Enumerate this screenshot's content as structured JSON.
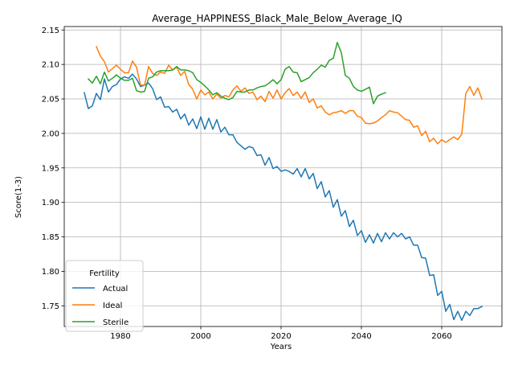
{
  "chart_data": {
    "type": "line",
    "title": "Average_HAPPINESS_Black_Male_Below_Average_IQ",
    "xlabel": "Years",
    "ylabel": "Score(1-3)",
    "xlim": [
      1966,
      2075
    ],
    "ylim": [
      1.72,
      2.155
    ],
    "x_ticks": [
      1980,
      2000,
      2020,
      2040,
      2060
    ],
    "x_tick_labels": [
      "1980",
      "2000",
      "2020",
      "2040",
      "2060"
    ],
    "y_ticks": [
      1.75,
      1.8,
      1.85,
      1.9,
      1.95,
      2.0,
      2.05,
      2.1,
      2.15
    ],
    "y_tick_labels": [
      "1.75",
      "1.80",
      "1.85",
      "1.90",
      "1.95",
      "2.00",
      "2.05",
      "2.10",
      "2.15"
    ],
    "grid": true,
    "legend": {
      "title": "Fertility",
      "placement": "bottom-left"
    },
    "series": [
      {
        "name": "Actual",
        "color": "#1f77b4",
        "x": [
          1971,
          1972,
          1973,
          1974,
          1975,
          1976,
          1977,
          1978,
          1979,
          1980,
          1981,
          1982,
          1983,
          1984,
          1985,
          1986,
          1987,
          1988,
          1989,
          1990,
          1991,
          1992,
          1993,
          1994,
          1995,
          1996,
          1997,
          1998,
          1999,
          2000,
          2001,
          2002,
          2003,
          2004,
          2005,
          2006,
          2007,
          2008,
          2009,
          2010,
          2011,
          2012,
          2013,
          2014,
          2015,
          2016,
          2017,
          2018,
          2019,
          2020,
          2021,
          2022,
          2023,
          2024,
          2025,
          2026,
          2027,
          2028,
          2029,
          2030,
          2031,
          2032,
          2033,
          2034,
          2035,
          2036,
          2037,
          2038,
          2039,
          2040,
          2041,
          2042,
          2043,
          2044,
          2045,
          2046,
          2047,
          2048,
          2049,
          2050,
          2051,
          2052,
          2053,
          2054,
          2055,
          2056,
          2057,
          2058,
          2059,
          2060,
          2061,
          2062,
          2063,
          2064,
          2065,
          2066,
          2067,
          2068,
          2069,
          2070
        ],
        "y": [
          2.059,
          2.036,
          2.04,
          2.058,
          2.049,
          2.079,
          2.06,
          2.068,
          2.071,
          2.079,
          2.082,
          2.08,
          2.086,
          2.079,
          2.068,
          2.07,
          2.073,
          2.065,
          2.049,
          2.053,
          2.038,
          2.039,
          2.031,
          2.035,
          2.021,
          2.028,
          2.012,
          2.021,
          2.007,
          2.024,
          2.006,
          2.022,
          2.006,
          2.02,
          2.002,
          2.009,
          1.998,
          1.998,
          1.987,
          1.982,
          1.977,
          1.981,
          1.979,
          1.968,
          1.969,
          1.954,
          1.965,
          1.949,
          1.952,
          1.945,
          1.947,
          1.945,
          1.941,
          1.949,
          1.937,
          1.949,
          1.934,
          1.942,
          1.92,
          1.93,
          1.908,
          1.917,
          1.893,
          1.904,
          1.88,
          1.888,
          1.865,
          1.874,
          1.852,
          1.859,
          1.842,
          1.853,
          1.841,
          1.855,
          1.843,
          1.856,
          1.847,
          1.856,
          1.85,
          1.855,
          1.847,
          1.85,
          1.838,
          1.838,
          1.82,
          1.819,
          1.794,
          1.795,
          1.765,
          1.771,
          1.742,
          1.752,
          1.73,
          1.742,
          1.729,
          1.742,
          1.736,
          1.746,
          1.746,
          1.749
        ]
      },
      {
        "name": "Ideal",
        "color": "#ff7f0e",
        "x": [
          1974,
          1975,
          1976,
          1977,
          1978,
          1979,
          1980,
          1981,
          1982,
          1983,
          1984,
          1985,
          1986,
          1987,
          1988,
          1989,
          1990,
          1991,
          1992,
          1993,
          1994,
          1995,
          1996,
          1997,
          1998,
          1999,
          2000,
          2001,
          2002,
          2003,
          2004,
          2005,
          2006,
          2007,
          2008,
          2009,
          2010,
          2011,
          2012,
          2013,
          2014,
          2015,
          2016,
          2017,
          2018,
          2019,
          2020,
          2021,
          2022,
          2023,
          2024,
          2025,
          2026,
          2027,
          2028,
          2029,
          2030,
          2031,
          2032,
          2033,
          2034,
          2035,
          2036,
          2037,
          2038,
          2039,
          2040,
          2041,
          2042,
          2043,
          2044,
          2045,
          2046,
          2047,
          2048,
          2049,
          2050,
          2051,
          2052,
          2053,
          2054,
          2055,
          2056,
          2057,
          2058,
          2059,
          2060,
          2061,
          2062,
          2063,
          2064,
          2065,
          2066,
          2067,
          2068,
          2069,
          2070
        ],
        "y": [
          2.126,
          2.112,
          2.104,
          2.089,
          2.094,
          2.099,
          2.093,
          2.088,
          2.088,
          2.105,
          2.096,
          2.07,
          2.07,
          2.097,
          2.087,
          2.084,
          2.089,
          2.087,
          2.099,
          2.092,
          2.096,
          2.084,
          2.09,
          2.071,
          2.064,
          2.05,
          2.063,
          2.056,
          2.06,
          2.05,
          2.057,
          2.051,
          2.055,
          2.053,
          2.063,
          2.069,
          2.061,
          2.066,
          2.058,
          2.06,
          2.049,
          2.054,
          2.046,
          2.061,
          2.051,
          2.063,
          2.05,
          2.059,
          2.065,
          2.055,
          2.06,
          2.051,
          2.06,
          2.045,
          2.05,
          2.037,
          2.04,
          2.031,
          2.027,
          2.03,
          2.031,
          2.033,
          2.029,
          2.033,
          2.033,
          2.025,
          2.023,
          2.015,
          2.014,
          2.015,
          2.018,
          2.023,
          2.027,
          2.033,
          2.031,
          2.03,
          2.025,
          2.02,
          2.019,
          2.009,
          2.011,
          1.997,
          2.003,
          1.988,
          1.993,
          1.985,
          1.991,
          1.987,
          1.991,
          1.995,
          1.991,
          1.999,
          2.058,
          2.068,
          2.055,
          2.066,
          2.05
        ]
      },
      {
        "name": "Sterile",
        "color": "#2ca02c",
        "x": [
          1972,
          1973,
          1974,
          1975,
          1976,
          1977,
          1978,
          1979,
          1980,
          1981,
          1982,
          1983,
          1984,
          1985,
          1986,
          1987,
          1988,
          1989,
          1990,
          1991,
          1992,
          1993,
          1994,
          1995,
          1996,
          1997,
          1998,
          1999,
          2000,
          2001,
          2002,
          2003,
          2004,
          2005,
          2006,
          2007,
          2008,
          2009,
          2010,
          2011,
          2012,
          2013,
          2014,
          2015,
          2016,
          2017,
          2018,
          2019,
          2020,
          2021,
          2022,
          2023,
          2024,
          2025,
          2026,
          2027,
          2028,
          2029,
          2030,
          2031,
          2032,
          2033,
          2034,
          2035,
          2036,
          2037,
          2038,
          2039,
          2040,
          2041,
          2042,
          2043,
          2044,
          2045,
          2046
        ],
        "y": [
          2.079,
          2.073,
          2.083,
          2.072,
          2.089,
          2.076,
          2.08,
          2.085,
          2.08,
          2.077,
          2.077,
          2.08,
          2.062,
          2.06,
          2.061,
          2.08,
          2.082,
          2.089,
          2.091,
          2.091,
          2.091,
          2.092,
          2.097,
          2.092,
          2.092,
          2.091,
          2.088,
          2.078,
          2.074,
          2.069,
          2.063,
          2.056,
          2.059,
          2.054,
          2.051,
          2.049,
          2.052,
          2.061,
          2.06,
          2.06,
          2.063,
          2.063,
          2.066,
          2.068,
          2.069,
          2.073,
          2.078,
          2.072,
          2.078,
          2.093,
          2.097,
          2.089,
          2.088,
          2.075,
          2.078,
          2.081,
          2.088,
          2.093,
          2.099,
          2.096,
          2.106,
          2.109,
          2.132,
          2.117,
          2.084,
          2.08,
          2.068,
          2.063,
          2.061,
          2.064,
          2.067,
          2.043,
          2.054,
          2.057,
          2.059
        ]
      }
    ]
  }
}
